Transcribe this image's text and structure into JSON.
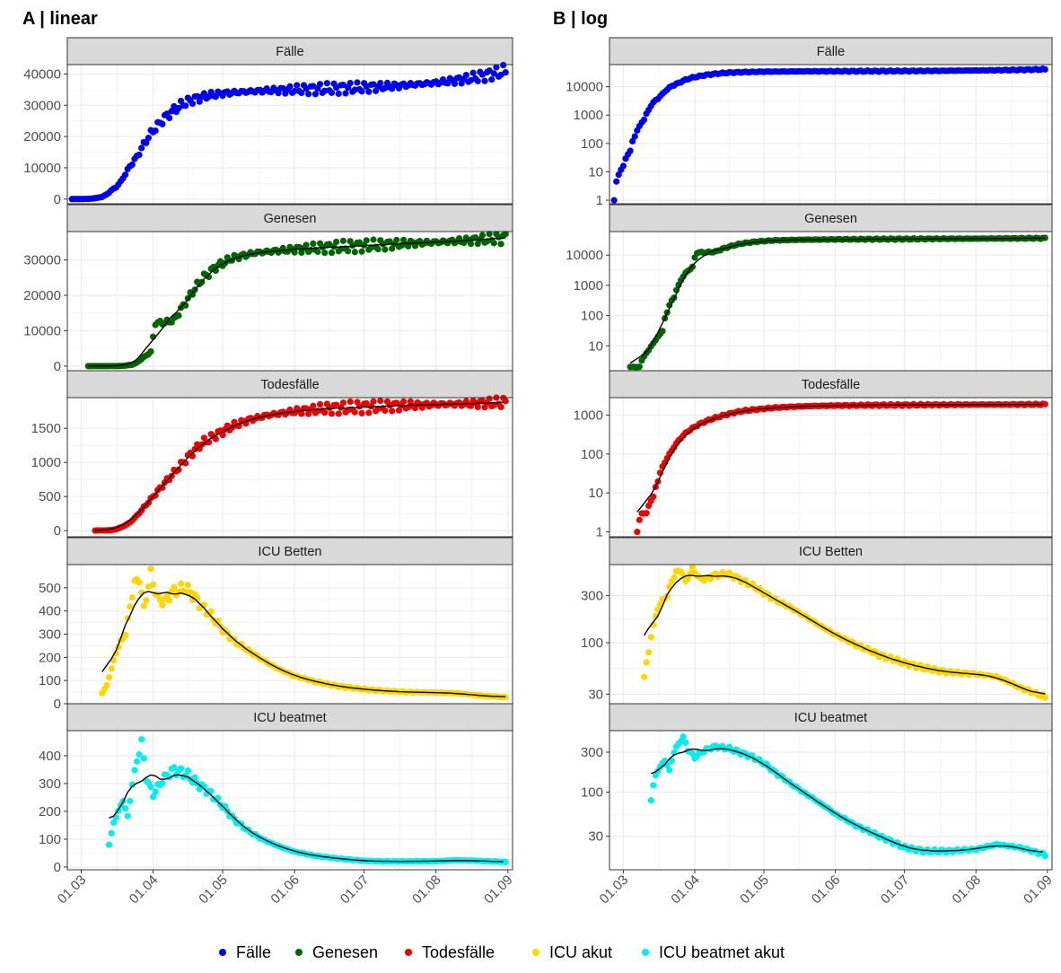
{
  "chart_data": {
    "type": "scatter",
    "legend_position": "bottom",
    "grid": true,
    "legend": [
      {
        "label": "Fälle",
        "color": "#0000ee"
      },
      {
        "label": "Genesen",
        "color": "#006400"
      },
      {
        "label": "Todesfälle",
        "color": "#ee0000"
      },
      {
        "label": "ICU akut",
        "color": "#ffd700"
      },
      {
        "label": "ICU beatmet akut",
        "color": "#00eeee"
      }
    ],
    "x_ticks": [
      "01.03",
      "01.04",
      "01.05",
      "01.06",
      "01.07",
      "01.08",
      "01.09"
    ],
    "x_range": [
      "2020-02-24",
      "2020-09-03"
    ],
    "columns": [
      {
        "title": "A | linear",
        "scale": "linear",
        "facets": [
          {
            "strip": "Fälle",
            "ylim": [
              -1500,
              43000
            ],
            "yticks": [
              0,
              10000,
              20000,
              30000,
              40000
            ],
            "yticklabels": [
              "0",
              "10000",
              "20000",
              "30000",
              "40000"
            ]
          },
          {
            "strip": "Genesen",
            "ylim": [
              -1300,
              38000
            ],
            "yticks": [
              0,
              10000,
              20000,
              30000
            ],
            "yticklabels": [
              "0",
              "10000",
              "20000",
              "30000"
            ]
          },
          {
            "strip": "Todesfälle",
            "ylim": [
              -90,
              1950
            ],
            "yticks": [
              0,
              500,
              1000,
              1500
            ],
            "yticklabels": [
              "0",
              "500",
              "1000",
              "1500"
            ]
          },
          {
            "strip": "ICU Betten",
            "ylim": [
              0,
              600
            ],
            "yticks": [
              0,
              100,
              200,
              300,
              400,
              500
            ],
            "yticklabels": [
              "0",
              "100",
              "200",
              "300",
              "400",
              "500"
            ]
          },
          {
            "strip": "ICU beatmet",
            "ylim": [
              -10,
              490
            ],
            "yticks": [
              0,
              100,
              200,
              300,
              400
            ],
            "yticklabels": [
              "0",
              "100",
              "200",
              "300",
              "400"
            ]
          }
        ]
      },
      {
        "title": "B | log",
        "scale": "log",
        "facets": [
          {
            "strip": "Fälle",
            "ylim": [
              0.75,
              60000
            ],
            "yticks": [
              1,
              10,
              100,
              1000,
              10000
            ],
            "yticklabels": [
              "1",
              "10",
              "100",
              "1000",
              "10000"
            ]
          },
          {
            "strip": "Genesen",
            "ylim": [
              1.5,
              60000
            ],
            "yticks": [
              10,
              100,
              1000,
              10000
            ],
            "yticklabels": [
              "10",
              "100",
              "1000",
              "10000"
            ]
          },
          {
            "strip": "Todesfälle",
            "ylim": [
              0.75,
              2800
            ],
            "yticks": [
              1,
              10,
              100,
              1000
            ],
            "yticklabels": [
              "1",
              "10",
              "100",
              "1000"
            ]
          },
          {
            "strip": "ICU Betten",
            "ylim": [
              24,
              620
            ],
            "yticks": [
              30,
              100,
              300
            ],
            "yticklabels": [
              "30",
              "100",
              "300"
            ]
          },
          {
            "strip": "ICU beatmet",
            "ylim": [
              12,
              540
            ],
            "yticks": [
              30,
              100,
              300
            ],
            "yticklabels": [
              "30",
              "100",
              "300"
            ]
          }
        ]
      }
    ],
    "series": [
      {
        "name": "Fälle",
        "color": "#0000ee",
        "fit": false,
        "points": [
          [
            "2020-02-26",
            1
          ],
          [
            "2020-02-28",
            8
          ],
          [
            "2020-03-01",
            16
          ],
          [
            "2020-03-04",
            55
          ],
          [
            "2020-03-06",
            180
          ],
          [
            "2020-03-08",
            400
          ],
          [
            "2020-03-10",
            700
          ],
          [
            "2020-03-12",
            1500
          ],
          [
            "2020-03-14",
            2800
          ],
          [
            "2020-03-16",
            3800
          ],
          [
            "2020-03-18",
            5500
          ],
          [
            "2020-03-20",
            8000
          ],
          [
            "2020-03-22",
            10500
          ],
          [
            "2020-03-25",
            13500
          ],
          [
            "2020-03-28",
            17500
          ],
          [
            "2020-03-31",
            21000
          ],
          [
            "2020-04-03",
            23500
          ],
          [
            "2020-04-06",
            26000
          ],
          [
            "2020-04-10",
            28500
          ],
          [
            "2020-04-14",
            30500
          ],
          [
            "2020-04-18",
            31800
          ],
          [
            "2020-04-24",
            33000
          ],
          [
            "2020-05-01",
            33800
          ],
          [
            "2020-05-10",
            34300
          ],
          [
            "2020-05-20",
            34700
          ],
          [
            "2020-06-01",
            35000
          ],
          [
            "2020-06-15",
            35300
          ],
          [
            "2020-07-01",
            35700
          ],
          [
            "2020-07-15",
            36200
          ],
          [
            "2020-08-01",
            37200
          ],
          [
            "2020-08-15",
            38500
          ],
          [
            "2020-08-25",
            40000
          ],
          [
            "2020-08-31",
            41000
          ]
        ]
      },
      {
        "name": "Genesen",
        "color": "#006400",
        "fit": true,
        "points": [
          [
            "2020-03-04",
            2
          ],
          [
            "2020-03-08",
            2
          ],
          [
            "2020-03-12",
            7
          ],
          [
            "2020-03-15",
            15
          ],
          [
            "2020-03-18",
            30
          ],
          [
            "2020-03-20",
            130
          ],
          [
            "2020-03-23",
            400
          ],
          [
            "2020-03-25",
            1000
          ],
          [
            "2020-03-28",
            2500
          ],
          [
            "2020-03-31",
            4000
          ],
          [
            "2020-04-02",
            12200
          ],
          [
            "2020-04-06",
            12300
          ],
          [
            "2020-04-10",
            13000
          ],
          [
            "2020-04-14",
            17000
          ],
          [
            "2020-04-18",
            21000
          ],
          [
            "2020-04-22",
            24500
          ],
          [
            "2020-04-28",
            28000
          ],
          [
            "2020-05-05",
            30500
          ],
          [
            "2020-05-15",
            32000
          ],
          [
            "2020-06-01",
            33000
          ],
          [
            "2020-06-15",
            33500
          ],
          [
            "2020-07-01",
            34000
          ],
          [
            "2020-07-15",
            34500
          ],
          [
            "2020-08-01",
            35000
          ],
          [
            "2020-08-15",
            35500
          ],
          [
            "2020-08-31",
            36200
          ]
        ]
      },
      {
        "name": "Todesfälle",
        "color": "#ee0000",
        "fit": true,
        "points": [
          [
            "2020-03-07",
            1
          ],
          [
            "2020-03-09",
            3
          ],
          [
            "2020-03-11",
            3
          ],
          [
            "2020-03-14",
            8
          ],
          [
            "2020-03-16",
            20
          ],
          [
            "2020-03-19",
            60
          ],
          [
            "2020-03-22",
            120
          ],
          [
            "2020-03-25",
            220
          ],
          [
            "2020-03-28",
            340
          ],
          [
            "2020-03-31",
            460
          ],
          [
            "2020-04-03",
            580
          ],
          [
            "2020-04-06",
            700
          ],
          [
            "2020-04-10",
            850
          ],
          [
            "2020-04-14",
            1000
          ],
          [
            "2020-04-18",
            1150
          ],
          [
            "2020-04-22",
            1280
          ],
          [
            "2020-04-28",
            1400
          ],
          [
            "2020-05-05",
            1530
          ],
          [
            "2020-05-12",
            1620
          ],
          [
            "2020-05-20",
            1690
          ],
          [
            "2020-06-01",
            1750
          ],
          [
            "2020-06-15",
            1790
          ],
          [
            "2020-07-01",
            1810
          ],
          [
            "2020-07-15",
            1830
          ],
          [
            "2020-08-01",
            1850
          ],
          [
            "2020-08-15",
            1860
          ],
          [
            "2020-08-31",
            1880
          ]
        ]
      },
      {
        "name": "ICU akut",
        "color": "#ffd700",
        "fit": true,
        "points": [
          [
            "2020-03-10",
            45
          ],
          [
            "2020-03-12",
            80
          ],
          [
            "2020-03-14",
            150
          ],
          [
            "2020-03-16",
            220
          ],
          [
            "2020-03-18",
            270
          ],
          [
            "2020-03-20",
            300
          ],
          [
            "2020-03-22",
            420
          ],
          [
            "2020-03-24",
            520
          ],
          [
            "2020-03-26",
            540
          ],
          [
            "2020-03-28",
            410
          ],
          [
            "2020-03-31",
            560
          ],
          [
            "2020-04-03",
            450
          ],
          [
            "2020-04-06",
            440
          ],
          [
            "2020-04-09",
            480
          ],
          [
            "2020-04-12",
            490
          ],
          [
            "2020-04-15",
            500
          ],
          [
            "2020-04-18",
            470
          ],
          [
            "2020-04-22",
            420
          ],
          [
            "2020-04-26",
            380
          ],
          [
            "2020-05-01",
            320
          ],
          [
            "2020-05-06",
            270
          ],
          [
            "2020-05-12",
            230
          ],
          [
            "2020-05-18",
            190
          ],
          [
            "2020-05-25",
            150
          ],
          [
            "2020-06-01",
            120
          ],
          [
            "2020-06-10",
            95
          ],
          [
            "2020-06-20",
            75
          ],
          [
            "2020-07-01",
            62
          ],
          [
            "2020-07-10",
            55
          ],
          [
            "2020-07-20",
            50
          ],
          [
            "2020-08-01",
            48
          ],
          [
            "2020-08-10",
            45
          ],
          [
            "2020-08-20",
            35
          ],
          [
            "2020-08-31",
            28
          ]
        ]
      },
      {
        "name": "ICU beatmet akut",
        "color": "#00eeee",
        "fit": true,
        "points": [
          [
            "2020-03-13",
            80
          ],
          [
            "2020-03-15",
            160
          ],
          [
            "2020-03-17",
            200
          ],
          [
            "2020-03-19",
            240
          ],
          [
            "2020-03-21",
            180
          ],
          [
            "2020-03-23",
            300
          ],
          [
            "2020-03-25",
            380
          ],
          [
            "2020-03-27",
            450
          ],
          [
            "2020-03-29",
            320
          ],
          [
            "2020-04-01",
            260
          ],
          [
            "2020-04-04",
            300
          ],
          [
            "2020-04-07",
            330
          ],
          [
            "2020-04-10",
            350
          ],
          [
            "2020-04-13",
            340
          ],
          [
            "2020-04-16",
            330
          ],
          [
            "2020-04-20",
            300
          ],
          [
            "2020-04-25",
            270
          ],
          [
            "2020-05-01",
            220
          ],
          [
            "2020-05-06",
            170
          ],
          [
            "2020-05-12",
            130
          ],
          [
            "2020-05-18",
            100
          ],
          [
            "2020-05-25",
            75
          ],
          [
            "2020-06-01",
            55
          ],
          [
            "2020-06-10",
            40
          ],
          [
            "2020-06-20",
            30
          ],
          [
            "2020-07-01",
            22
          ],
          [
            "2020-07-10",
            20
          ],
          [
            "2020-07-20",
            20
          ],
          [
            "2020-08-01",
            21
          ],
          [
            "2020-08-10",
            24
          ],
          [
            "2020-08-20",
            22
          ],
          [
            "2020-08-31",
            18
          ]
        ]
      }
    ]
  }
}
